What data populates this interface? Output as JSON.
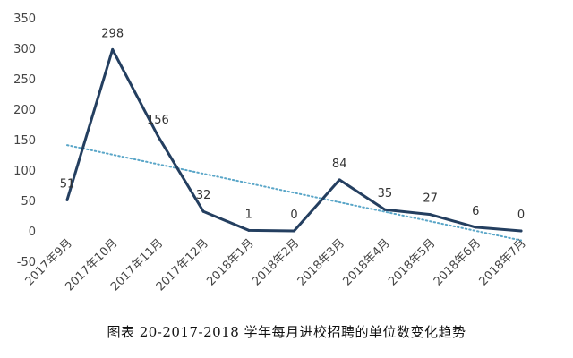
{
  "chart_data": {
    "type": "line",
    "categories": [
      "2017年9月",
      "2017年10月",
      "2017年11月",
      "2017年12月",
      "2018年1月",
      "2018年2月",
      "2018年3月",
      "2018年4月",
      "2018年5月",
      "2018年6月",
      "2018年7月"
    ],
    "series": [
      {
        "values": [
          51,
          298,
          156,
          32,
          1,
          0,
          84,
          35,
          27,
          6,
          0
        ],
        "data_labels": [
          "51",
          "298",
          "156",
          "32",
          "1",
          "0",
          "84",
          "35",
          "27",
          "6",
          "0"
        ],
        "color": "#243f60",
        "trendline": {
          "type": "linear",
          "color": "#5aa6c8",
          "style": "dotted"
        }
      }
    ],
    "yticks": [
      "-50",
      "0",
      "50",
      "100",
      "150",
      "200",
      "250",
      "300",
      "350"
    ],
    "ylim": [
      -50,
      350
    ],
    "grid": false,
    "legend": "none",
    "caption": "图表 20-2017-2018 学年每月进校招聘的单位数变化趋势"
  }
}
